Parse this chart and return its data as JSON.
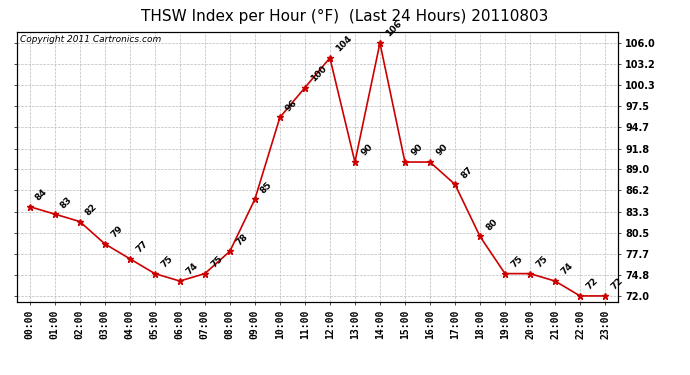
{
  "title": "THSW Index per Hour (°F)  (Last 24 Hours) 20110803",
  "copyright": "Copyright 2011 Cartronics.com",
  "hours": [
    "00:00",
    "01:00",
    "02:00",
    "03:00",
    "04:00",
    "05:00",
    "06:00",
    "07:00",
    "08:00",
    "09:00",
    "10:00",
    "11:00",
    "12:00",
    "13:00",
    "14:00",
    "15:00",
    "16:00",
    "17:00",
    "18:00",
    "19:00",
    "20:00",
    "21:00",
    "22:00",
    "23:00"
  ],
  "values": [
    84,
    83,
    82,
    79,
    77,
    75,
    74,
    75,
    78,
    85,
    96,
    100,
    104,
    90,
    106,
    90,
    90,
    87,
    80,
    75,
    75,
    74,
    72,
    72
  ],
  "yticks": [
    72.0,
    74.8,
    77.7,
    80.5,
    83.3,
    86.2,
    89.0,
    91.8,
    94.7,
    97.5,
    100.3,
    103.2,
    106.0
  ],
  "ylim": [
    71.2,
    107.5
  ],
  "line_color": "#cc0000",
  "marker_color": "#cc0000",
  "bg_color": "#ffffff",
  "grid_color": "#bbbbbb",
  "title_fontsize": 11,
  "label_fontsize": 7,
  "annot_fontsize": 6.5,
  "copyright_fontsize": 6.5
}
